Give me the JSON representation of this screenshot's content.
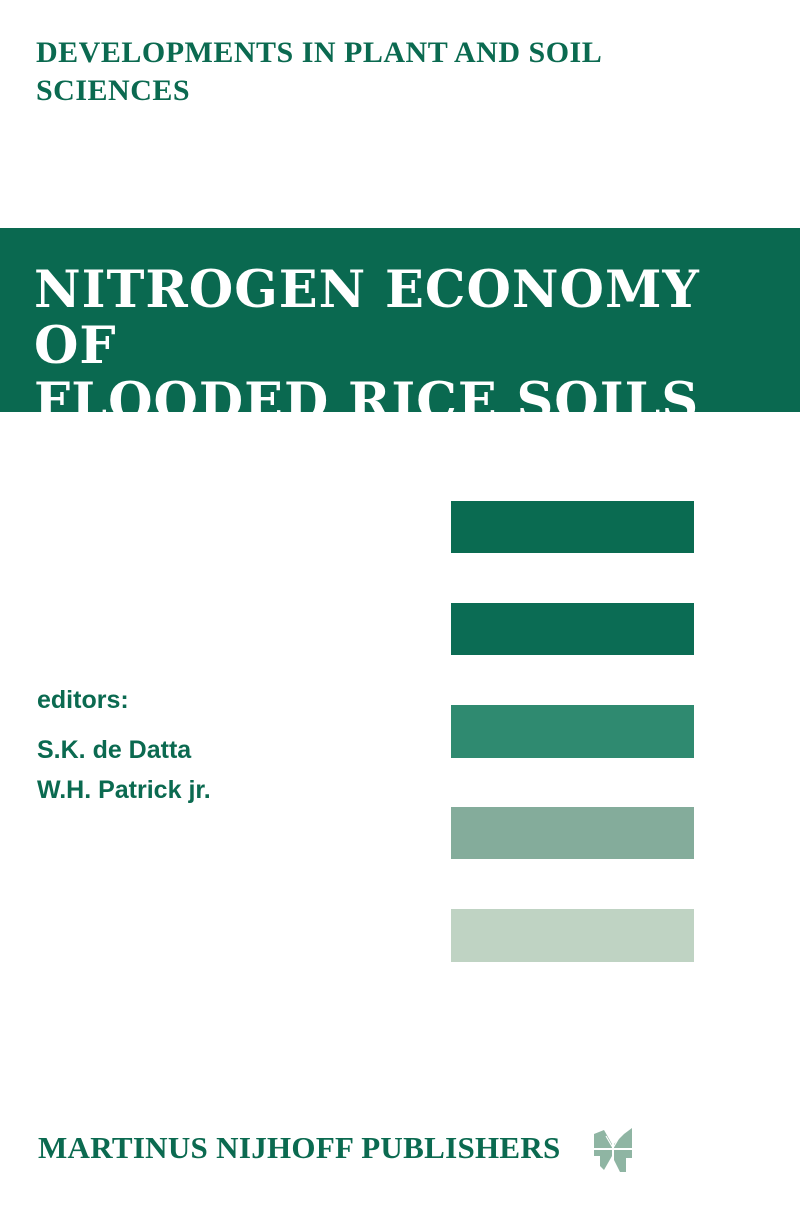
{
  "series_title": [
    "DEVELOPMENTS IN PLANT AND SOIL",
    "SCIENCES"
  ],
  "title": [
    "NITROGEN ECONOMY OF",
    "FLOODED RICE SOILS"
  ],
  "editors": {
    "label": "editors:",
    "names": [
      "S.K. de Datta",
      "W.H. Patrick jr."
    ]
  },
  "publisher": "MARTINUS NIJHOFF PUBLISHERS",
  "colors": {
    "brand_green": "#0a6950",
    "bars": [
      "#0a6b51",
      "#0b6c54",
      "#2f8a70",
      "#84ac9b",
      "#bfd3c3"
    ],
    "logo": "#8fb5a3"
  }
}
